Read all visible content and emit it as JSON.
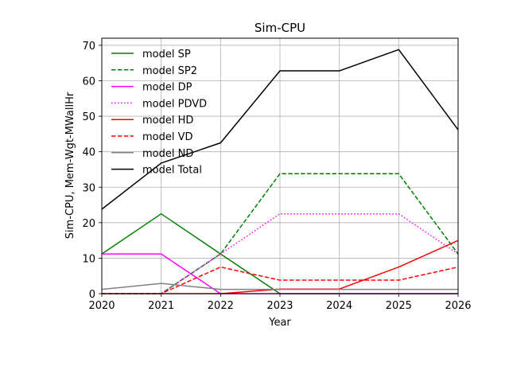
{
  "chart_data": {
    "type": "line",
    "title": "Sim-CPU",
    "xlabel": "Year",
    "ylabel": "Sim-CPU, Mem-Wgt-MWallHr",
    "xlim": [
      2020,
      2026
    ],
    "ylim": [
      0,
      72
    ],
    "x": [
      2020,
      2021,
      2022,
      2023,
      2024,
      2025,
      2026
    ],
    "x_ticks": [
      "2020",
      "2021",
      "2022",
      "2023",
      "2024",
      "2025",
      "2026"
    ],
    "y_ticks": [
      0,
      10,
      20,
      30,
      40,
      50,
      60,
      70
    ],
    "grid": true,
    "legend_position": "top-left",
    "series": [
      {
        "name": "model SP",
        "color": "#008000",
        "dash": "solid",
        "values": [
          11.2,
          22.5,
          11.2,
          0,
          0,
          0,
          0
        ]
      },
      {
        "name": "model SP2",
        "color": "#008000",
        "dash": "dashed",
        "values": [
          0,
          0,
          11.2,
          33.8,
          33.8,
          33.8,
          11.2
        ]
      },
      {
        "name": "model DP",
        "color": "#ff00ff",
        "dash": "solid",
        "values": [
          11.2,
          11.2,
          0,
          0,
          0,
          0,
          0
        ]
      },
      {
        "name": "model PDVD",
        "color": "#ff00ff",
        "dash": "dotted",
        "values": [
          0,
          0,
          11.2,
          22.5,
          22.5,
          22.5,
          11.2
        ]
      },
      {
        "name": "model HD",
        "color": "#ff0000",
        "dash": "solid",
        "values": [
          0,
          0,
          0,
          1.3,
          1.3,
          7.5,
          15.0
        ]
      },
      {
        "name": "model VD",
        "color": "#ff0000",
        "dash": "dashed",
        "values": [
          0,
          0,
          7.5,
          3.8,
          3.8,
          3.8,
          7.5
        ]
      },
      {
        "name": "model ND",
        "color": "#808080",
        "dash": "solid",
        "values": [
          1.2,
          2.9,
          1.2,
          1.2,
          1.2,
          1.2,
          1.2
        ]
      },
      {
        "name": "model Total",
        "color": "#000000",
        "dash": "solid",
        "values": [
          23.8,
          36.8,
          42.5,
          62.8,
          62.8,
          68.8,
          46.2
        ]
      }
    ]
  }
}
